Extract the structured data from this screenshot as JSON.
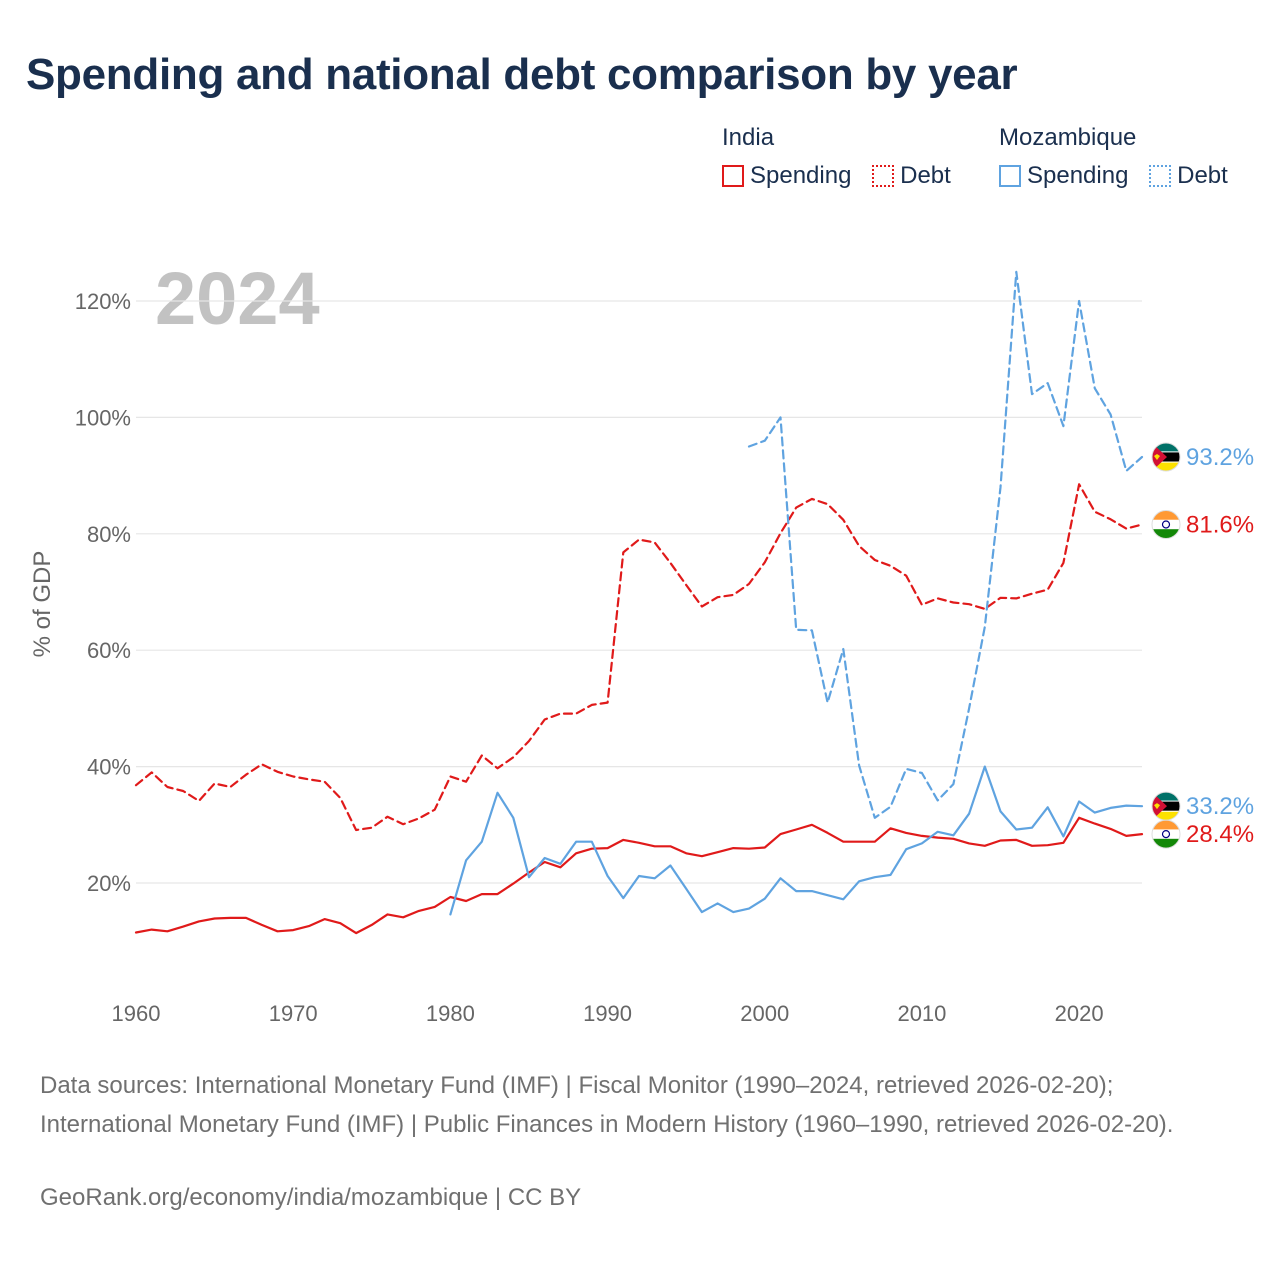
{
  "title": "Spending and national debt comparison by year",
  "legend": {
    "india": {
      "country": "India",
      "spending": "Spending",
      "debt": "Debt"
    },
    "mozambique": {
      "country": "Mozambique",
      "spending": "Spending",
      "debt": "Debt"
    }
  },
  "year_watermark": "2024",
  "colors": {
    "india": "#e01a1a",
    "mozambique": "#5fa3e0",
    "grid": "#e6e6e6",
    "axis_text": "#666666",
    "title": "#1a2f4e"
  },
  "chart_data": {
    "type": "line",
    "title": "Spending and national debt comparison by year",
    "ylabel": "% of GDP",
    "xlabel": "",
    "xlim": [
      1960,
      2024
    ],
    "ylim": [
      3,
      126
    ],
    "x_ticks": [
      1960,
      1970,
      1980,
      1990,
      2000,
      2010,
      2020
    ],
    "y_ticks": [
      20,
      40,
      60,
      80,
      100,
      120
    ],
    "y_tick_labels": [
      "20%",
      "40%",
      "60%",
      "80%",
      "100%",
      "120%"
    ],
    "grid": true,
    "series": [
      {
        "name": "India Spending",
        "country": "India",
        "style": "solid",
        "end_label": "28.4%",
        "x": [
          1960,
          1961,
          1962,
          1963,
          1964,
          1965,
          1966,
          1967,
          1968,
          1969,
          1970,
          1971,
          1972,
          1973,
          1974,
          1975,
          1976,
          1977,
          1978,
          1979,
          1980,
          1981,
          1982,
          1983,
          1984,
          1985,
          1986,
          1987,
          1988,
          1989,
          1990,
          1991,
          1992,
          1993,
          1994,
          1995,
          1996,
          1997,
          1998,
          1999,
          2000,
          2001,
          2002,
          2003,
          2004,
          2005,
          2006,
          2007,
          2008,
          2009,
          2010,
          2011,
          2012,
          2013,
          2014,
          2015,
          2016,
          2017,
          2018,
          2019,
          2020,
          2021,
          2022,
          2023,
          2024
        ],
        "values": [
          11.5,
          12.0,
          11.7,
          12.5,
          13.4,
          13.9,
          14.0,
          14.0,
          12.8,
          11.7,
          11.9,
          12.6,
          13.8,
          13.1,
          11.4,
          12.8,
          14.6,
          14.1,
          15.2,
          15.9,
          17.6,
          16.9,
          18.1,
          18.1,
          19.9,
          21.8,
          23.6,
          22.7,
          25.1,
          25.9,
          26.0,
          27.4,
          26.9,
          26.3,
          26.3,
          25.1,
          24.6,
          25.3,
          26.0,
          25.9,
          26.1,
          28.4,
          29.2,
          30.0,
          28.6,
          27.1,
          27.1,
          27.1,
          29.4,
          28.6,
          28.1,
          27.8,
          27.6,
          26.8,
          26.4,
          27.3,
          27.4,
          26.4,
          26.5,
          26.9,
          31.2,
          30.2,
          29.3,
          28.1,
          28.4
        ]
      },
      {
        "name": "India Debt",
        "country": "India",
        "style": "dashed",
        "end_label": "81.6%",
        "x": [
          1960,
          1961,
          1962,
          1963,
          1964,
          1965,
          1966,
          1967,
          1968,
          1969,
          1970,
          1971,
          1972,
          1973,
          1974,
          1975,
          1976,
          1977,
          1978,
          1979,
          1980,
          1981,
          1982,
          1983,
          1984,
          1985,
          1986,
          1987,
          1988,
          1989,
          1990,
          1991,
          1992,
          1993,
          1994,
          1995,
          1996,
          1997,
          1998,
          1999,
          2000,
          2001,
          2002,
          2003,
          2004,
          2005,
          2006,
          2007,
          2008,
          2009,
          2010,
          2011,
          2012,
          2013,
          2014,
          2015,
          2016,
          2017,
          2018,
          2019,
          2020,
          2021,
          2022,
          2023,
          2024
        ],
        "values": [
          36.8,
          39.0,
          36.5,
          35.8,
          34.1,
          37.1,
          36.5,
          38.6,
          40.4,
          39.1,
          38.3,
          37.8,
          37.4,
          34.6,
          29.1,
          29.5,
          31.4,
          30.1,
          31.1,
          32.6,
          38.3,
          37.4,
          41.9,
          39.7,
          41.6,
          44.4,
          48.1,
          49.1,
          49.1,
          50.6,
          51.0,
          76.8,
          79.0,
          78.5,
          75.0,
          71.2,
          67.5,
          69.1,
          69.5,
          71.4,
          75.1,
          80.1,
          84.5,
          86.0,
          85.1,
          82.4,
          77.9,
          75.5,
          74.5,
          72.8,
          67.8,
          68.9,
          68.2,
          67.9,
          67.1,
          69.0,
          68.9,
          69.7,
          70.4,
          75.0,
          88.5,
          83.8,
          82.5,
          80.9,
          81.6
        ]
      },
      {
        "name": "Mozambique Spending",
        "country": "Mozambique",
        "style": "solid",
        "end_label": "33.2%",
        "x": [
          1980,
          1981,
          1982,
          1983,
          1984,
          1985,
          1986,
          1987,
          1988,
          1989,
          1990,
          1991,
          1992,
          1993,
          1994,
          1995,
          1996,
          1997,
          1998,
          1999,
          2000,
          2001,
          2002,
          2003,
          2004,
          2005,
          2006,
          2007,
          2008,
          2009,
          2010,
          2011,
          2012,
          2013,
          2014,
          2015,
          2016,
          2017,
          2018,
          2019,
          2020,
          2021,
          2022,
          2023,
          2024
        ],
        "values": [
          14.6,
          23.9,
          27.1,
          35.5,
          31.2,
          21.0,
          24.3,
          23.3,
          27.1,
          27.1,
          21.2,
          17.4,
          21.2,
          20.8,
          23.0,
          19.0,
          15.0,
          16.5,
          15.0,
          15.6,
          17.3,
          20.8,
          18.6,
          18.6,
          17.9,
          17.2,
          20.3,
          21.0,
          21.4,
          25.8,
          26.8,
          28.8,
          28.2,
          31.9,
          40.0,
          32.3,
          29.2,
          29.5,
          33.0,
          28.0,
          34.0,
          32.1,
          32.9,
          33.3,
          33.2
        ]
      },
      {
        "name": "Mozambique Debt",
        "country": "Mozambique",
        "style": "dashed",
        "end_label": "93.2%",
        "x": [
          1999,
          2000,
          2001,
          2002,
          2003,
          2004,
          2005,
          2006,
          2007,
          2008,
          2009,
          2010,
          2011,
          2012,
          2013,
          2014,
          2015,
          2016,
          2017,
          2018,
          2019,
          2020,
          2021,
          2022,
          2023,
          2024
        ],
        "values": [
          95.0,
          96.0,
          100.0,
          63.5,
          63.4,
          51.0,
          60.2,
          40.2,
          31.2,
          33.1,
          39.6,
          38.9,
          34.2,
          37.0,
          50.0,
          64.0,
          88.0,
          125.0,
          104.0,
          105.9,
          98.5,
          120.0,
          105.0,
          100.5,
          90.8,
          93.2
        ]
      }
    ]
  },
  "sources_text": "Data sources: International Monetary Fund (IMF) | Fiscal Monitor (1990–2024, retrieved 2026-02-20); International Monetary Fund (IMF) | Public Finances in Modern History (1960–1990, retrieved 2026-02-20).",
  "credit_text": "GeoRank.org/economy/india/mozambique | CC BY"
}
